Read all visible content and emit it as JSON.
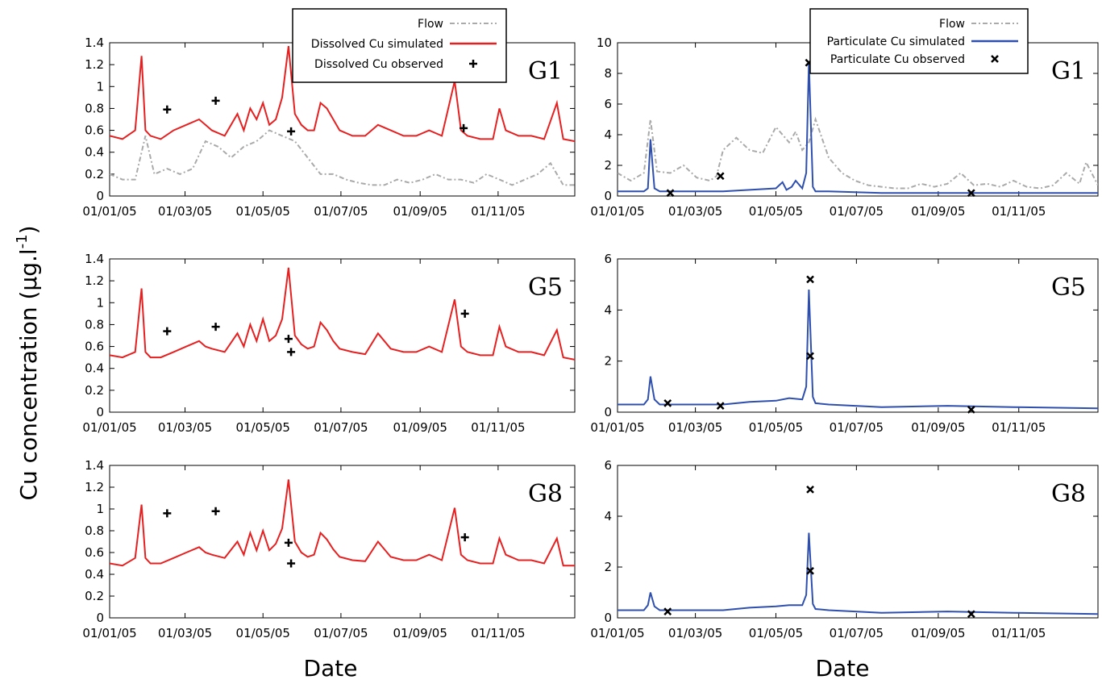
{
  "figure": {
    "ylabel": "Cu concentration (µg.l",
    "ylabel_sup": "-1",
    "ylabel_close": ")",
    "xlabel_left": "Date",
    "xlabel_right": "Date"
  },
  "chart_data": [
    {
      "id": "dis-g1",
      "type": "line",
      "site": "G1",
      "column": "left",
      "row": 0,
      "ylim": [
        0,
        1.4
      ],
      "yticks": [
        "0",
        "0.2",
        "0.4",
        "0.6",
        "0.8",
        "1",
        "1.2",
        "1.4"
      ],
      "xticks": [
        "01/01/05",
        "01/03/05",
        "01/05/05",
        "01/07/05",
        "01/09/05",
        "01/11/05"
      ],
      "legend": {
        "position": "top-center",
        "entries": [
          "Flow",
          "Dissolved Cu simulated",
          "Dissolved Cu observed"
        ]
      },
      "flow": {
        "name": "Flow",
        "color": "#aaaaaa",
        "x": [
          0,
          10,
          20,
          28,
          35,
          45,
          55,
          65,
          75,
          85,
          95,
          105,
          115,
          125,
          135,
          145,
          155,
          165,
          175,
          185,
          195,
          205,
          215,
          225,
          235,
          245,
          255,
          265,
          275,
          285,
          295,
          305,
          315,
          325,
          335,
          345,
          355,
          364
        ],
        "y": [
          0.2,
          0.15,
          0.15,
          0.55,
          0.2,
          0.25,
          0.2,
          0.25,
          0.5,
          0.45,
          0.35,
          0.45,
          0.5,
          0.6,
          0.55,
          0.5,
          0.35,
          0.2,
          0.2,
          0.15,
          0.12,
          0.1,
          0.1,
          0.15,
          0.12,
          0.15,
          0.2,
          0.15,
          0.15,
          0.12,
          0.2,
          0.15,
          0.1,
          0.15,
          0.2,
          0.3,
          0.1,
          0.1
        ]
      },
      "simulated": {
        "name": "Dissolved Cu simulated",
        "color": "#e62020",
        "x": [
          0,
          10,
          20,
          25,
          28,
          32,
          40,
          50,
          60,
          70,
          75,
          80,
          90,
          100,
          105,
          110,
          115,
          120,
          125,
          130,
          135,
          140,
          145,
          150,
          155,
          160,
          165,
          170,
          175,
          180,
          190,
          200,
          210,
          220,
          230,
          240,
          250,
          260,
          270,
          275,
          280,
          290,
          300,
          305,
          310,
          320,
          330,
          340,
          350,
          355,
          364
        ],
        "y": [
          0.55,
          0.52,
          0.6,
          1.28,
          0.6,
          0.55,
          0.52,
          0.6,
          0.65,
          0.7,
          0.65,
          0.6,
          0.55,
          0.75,
          0.6,
          0.8,
          0.7,
          0.85,
          0.65,
          0.7,
          0.9,
          1.37,
          0.75,
          0.65,
          0.6,
          0.6,
          0.85,
          0.8,
          0.7,
          0.6,
          0.55,
          0.55,
          0.65,
          0.6,
          0.55,
          0.55,
          0.6,
          0.55,
          1.05,
          0.6,
          0.55,
          0.52,
          0.52,
          0.8,
          0.6,
          0.55,
          0.55,
          0.52,
          0.85,
          0.52,
          0.5
        ]
      },
      "observed": {
        "name": "Dissolved Cu observed",
        "marker": "+",
        "x": [
          45,
          83,
          142,
          277
        ],
        "y": [
          0.79,
          0.87,
          0.59,
          0.62
        ]
      }
    },
    {
      "id": "part-g1",
      "type": "line",
      "site": "G1",
      "column": "right",
      "row": 0,
      "ylim": [
        0,
        10
      ],
      "yticks": [
        "0",
        "2",
        "4",
        "6",
        "8",
        "10"
      ],
      "xticks": [
        "01/01/05",
        "01/03/05",
        "01/05/05",
        "01/07/05",
        "01/09/05",
        "01/11/05"
      ],
      "legend": {
        "position": "top-right",
        "entries": [
          "Flow",
          "Particulate Cu simulated",
          "Particulate Cu observed"
        ]
      },
      "flow": {
        "name": "Flow",
        "color": "#aaaaaa",
        "x": [
          0,
          10,
          20,
          25,
          30,
          40,
          50,
          60,
          70,
          75,
          80,
          90,
          100,
          110,
          120,
          130,
          135,
          140,
          145,
          150,
          160,
          170,
          180,
          190,
          200,
          210,
          220,
          230,
          240,
          250,
          260,
          270,
          280,
          290,
          300,
          310,
          320,
          330,
          340,
          350,
          355,
          364
        ],
        "y": [
          1.5,
          1.0,
          1.5,
          5.0,
          1.6,
          1.5,
          2.0,
          1.2,
          1.0,
          1.3,
          3.0,
          3.8,
          3.0,
          2.8,
          4.5,
          3.5,
          4.2,
          3.0,
          3.5,
          5.0,
          2.5,
          1.5,
          1.0,
          0.7,
          0.6,
          0.5,
          0.5,
          0.8,
          0.6,
          0.8,
          1.5,
          0.7,
          0.8,
          0.6,
          1.0,
          0.6,
          0.5,
          0.7,
          1.5,
          0.8,
          2.2,
          0.7
        ]
      },
      "simulated": {
        "name": "Particulate Cu simulated",
        "color": "#2e4fae",
        "x": [
          0,
          20,
          23,
          25,
          28,
          32,
          50,
          80,
          100,
          120,
          125,
          128,
          132,
          135,
          140,
          143,
          145,
          148,
          150,
          160,
          200,
          250,
          300,
          364
        ],
        "y": [
          0.3,
          0.3,
          0.5,
          3.7,
          0.5,
          0.3,
          0.3,
          0.3,
          0.4,
          0.5,
          0.9,
          0.4,
          0.6,
          1.0,
          0.5,
          1.5,
          8.8,
          0.6,
          0.3,
          0.3,
          0.2,
          0.2,
          0.2,
          0.2
        ]
      },
      "observed": {
        "name": "Particulate Cu observed",
        "marker": "x",
        "x": [
          40,
          78,
          145,
          268
        ],
        "y": [
          0.2,
          1.3,
          8.7,
          0.2
        ]
      }
    },
    {
      "id": "dis-g5",
      "type": "line",
      "site": "G5",
      "column": "left",
      "row": 1,
      "ylim": [
        0,
        1.4
      ],
      "yticks": [
        "0",
        "0.2",
        "0.4",
        "0.6",
        "0.8",
        "1",
        "1.2",
        "1.4"
      ],
      "xticks": [
        "01/01/05",
        "01/03/05",
        "01/05/05",
        "01/07/05",
        "01/09/05",
        "01/11/05"
      ],
      "simulated": {
        "name": "Dissolved Cu simulated",
        "color": "#e62020",
        "x": [
          0,
          10,
          20,
          25,
          28,
          32,
          40,
          50,
          60,
          70,
          75,
          80,
          90,
          100,
          105,
          110,
          115,
          120,
          125,
          130,
          135,
          140,
          145,
          150,
          155,
          160,
          165,
          170,
          175,
          180,
          190,
          200,
          210,
          220,
          230,
          240,
          250,
          260,
          270,
          275,
          280,
          290,
          300,
          305,
          310,
          320,
          330,
          340,
          350,
          355,
          364
        ],
        "y": [
          0.52,
          0.5,
          0.55,
          1.13,
          0.55,
          0.5,
          0.5,
          0.55,
          0.6,
          0.65,
          0.6,
          0.58,
          0.55,
          0.72,
          0.6,
          0.8,
          0.65,
          0.85,
          0.65,
          0.7,
          0.85,
          1.32,
          0.7,
          0.62,
          0.58,
          0.6,
          0.82,
          0.75,
          0.65,
          0.58,
          0.55,
          0.53,
          0.72,
          0.58,
          0.55,
          0.55,
          0.6,
          0.55,
          1.03,
          0.6,
          0.55,
          0.52,
          0.52,
          0.78,
          0.6,
          0.55,
          0.55,
          0.52,
          0.75,
          0.5,
          0.48
        ]
      },
      "observed": {
        "name": "Dissolved Cu observed",
        "marker": "+",
        "x": [
          45,
          83,
          140,
          142,
          278
        ],
        "y": [
          0.74,
          0.78,
          0.67,
          0.55,
          0.9
        ]
      }
    },
    {
      "id": "part-g5",
      "type": "line",
      "site": "G5",
      "column": "right",
      "row": 1,
      "ylim": [
        0,
        6
      ],
      "yticks": [
        "0",
        "2",
        "4",
        "6"
      ],
      "xticks": [
        "01/01/05",
        "01/03/05",
        "01/05/05",
        "01/07/05",
        "01/09/05",
        "01/11/05"
      ],
      "simulated": {
        "name": "Particulate Cu simulated",
        "color": "#2e4fae",
        "x": [
          0,
          20,
          23,
          25,
          28,
          32,
          50,
          80,
          100,
          120,
          130,
          140,
          143,
          145,
          148,
          150,
          160,
          200,
          250,
          300,
          364
        ],
        "y": [
          0.3,
          0.3,
          0.5,
          1.4,
          0.5,
          0.3,
          0.3,
          0.3,
          0.4,
          0.45,
          0.55,
          0.5,
          1.0,
          4.8,
          0.6,
          0.35,
          0.3,
          0.2,
          0.25,
          0.2,
          0.15
        ]
      },
      "observed": {
        "name": "Particulate Cu observed",
        "marker": "x",
        "x": [
          38,
          78,
          146,
          146,
          268
        ],
        "y": [
          0.35,
          0.25,
          5.2,
          2.2,
          0.1
        ]
      }
    },
    {
      "id": "dis-g8",
      "type": "line",
      "site": "G8",
      "column": "left",
      "row": 2,
      "ylim": [
        0,
        1.4
      ],
      "yticks": [
        "0",
        "0.2",
        "0.4",
        "0.6",
        "0.8",
        "1",
        "1.2",
        "1.4"
      ],
      "xticks": [
        "01/01/05",
        "01/03/05",
        "01/05/05",
        "01/07/05",
        "01/09/05",
        "01/11/05"
      ],
      "simulated": {
        "name": "Dissolved Cu simulated",
        "color": "#e62020",
        "x": [
          0,
          10,
          20,
          25,
          28,
          32,
          40,
          50,
          60,
          70,
          75,
          80,
          90,
          100,
          105,
          110,
          115,
          120,
          125,
          130,
          135,
          140,
          145,
          150,
          155,
          160,
          165,
          170,
          175,
          180,
          190,
          200,
          210,
          220,
          230,
          240,
          250,
          260,
          270,
          275,
          280,
          290,
          300,
          305,
          310,
          320,
          330,
          340,
          350,
          355,
          364
        ],
        "y": [
          0.5,
          0.48,
          0.55,
          1.04,
          0.55,
          0.5,
          0.5,
          0.55,
          0.6,
          0.65,
          0.6,
          0.58,
          0.55,
          0.7,
          0.58,
          0.78,
          0.62,
          0.8,
          0.62,
          0.68,
          0.82,
          1.27,
          0.7,
          0.6,
          0.56,
          0.58,
          0.78,
          0.72,
          0.63,
          0.56,
          0.53,
          0.52,
          0.7,
          0.56,
          0.53,
          0.53,
          0.58,
          0.53,
          1.01,
          0.58,
          0.53,
          0.5,
          0.5,
          0.73,
          0.58,
          0.53,
          0.53,
          0.5,
          0.73,
          0.48,
          0.48
        ]
      },
      "observed": {
        "name": "Dissolved Cu observed",
        "marker": "+",
        "x": [
          45,
          83,
          140,
          142,
          278
        ],
        "y": [
          0.96,
          0.98,
          0.69,
          0.5,
          0.74
        ]
      }
    },
    {
      "id": "part-g8",
      "type": "line",
      "site": "G8",
      "column": "right",
      "row": 2,
      "ylim": [
        0,
        6
      ],
      "yticks": [
        "0",
        "2",
        "4",
        "6"
      ],
      "xticks": [
        "01/01/05",
        "01/03/05",
        "01/05/05",
        "01/07/05",
        "01/09/05",
        "01/11/05"
      ],
      "simulated": {
        "name": "Particulate Cu simulated",
        "color": "#2e4fae",
        "x": [
          0,
          20,
          23,
          25,
          28,
          32,
          50,
          80,
          100,
          120,
          130,
          140,
          143,
          145,
          148,
          150,
          160,
          200,
          250,
          300,
          364
        ],
        "y": [
          0.3,
          0.3,
          0.5,
          1.0,
          0.45,
          0.3,
          0.3,
          0.3,
          0.4,
          0.45,
          0.5,
          0.5,
          0.9,
          3.35,
          0.55,
          0.35,
          0.3,
          0.2,
          0.25,
          0.2,
          0.15
        ]
      },
      "observed": {
        "name": "Particulate Cu observed",
        "marker": "x",
        "x": [
          38,
          146,
          146,
          268
        ],
        "y": [
          0.25,
          5.05,
          1.85,
          0.15
        ]
      }
    }
  ]
}
